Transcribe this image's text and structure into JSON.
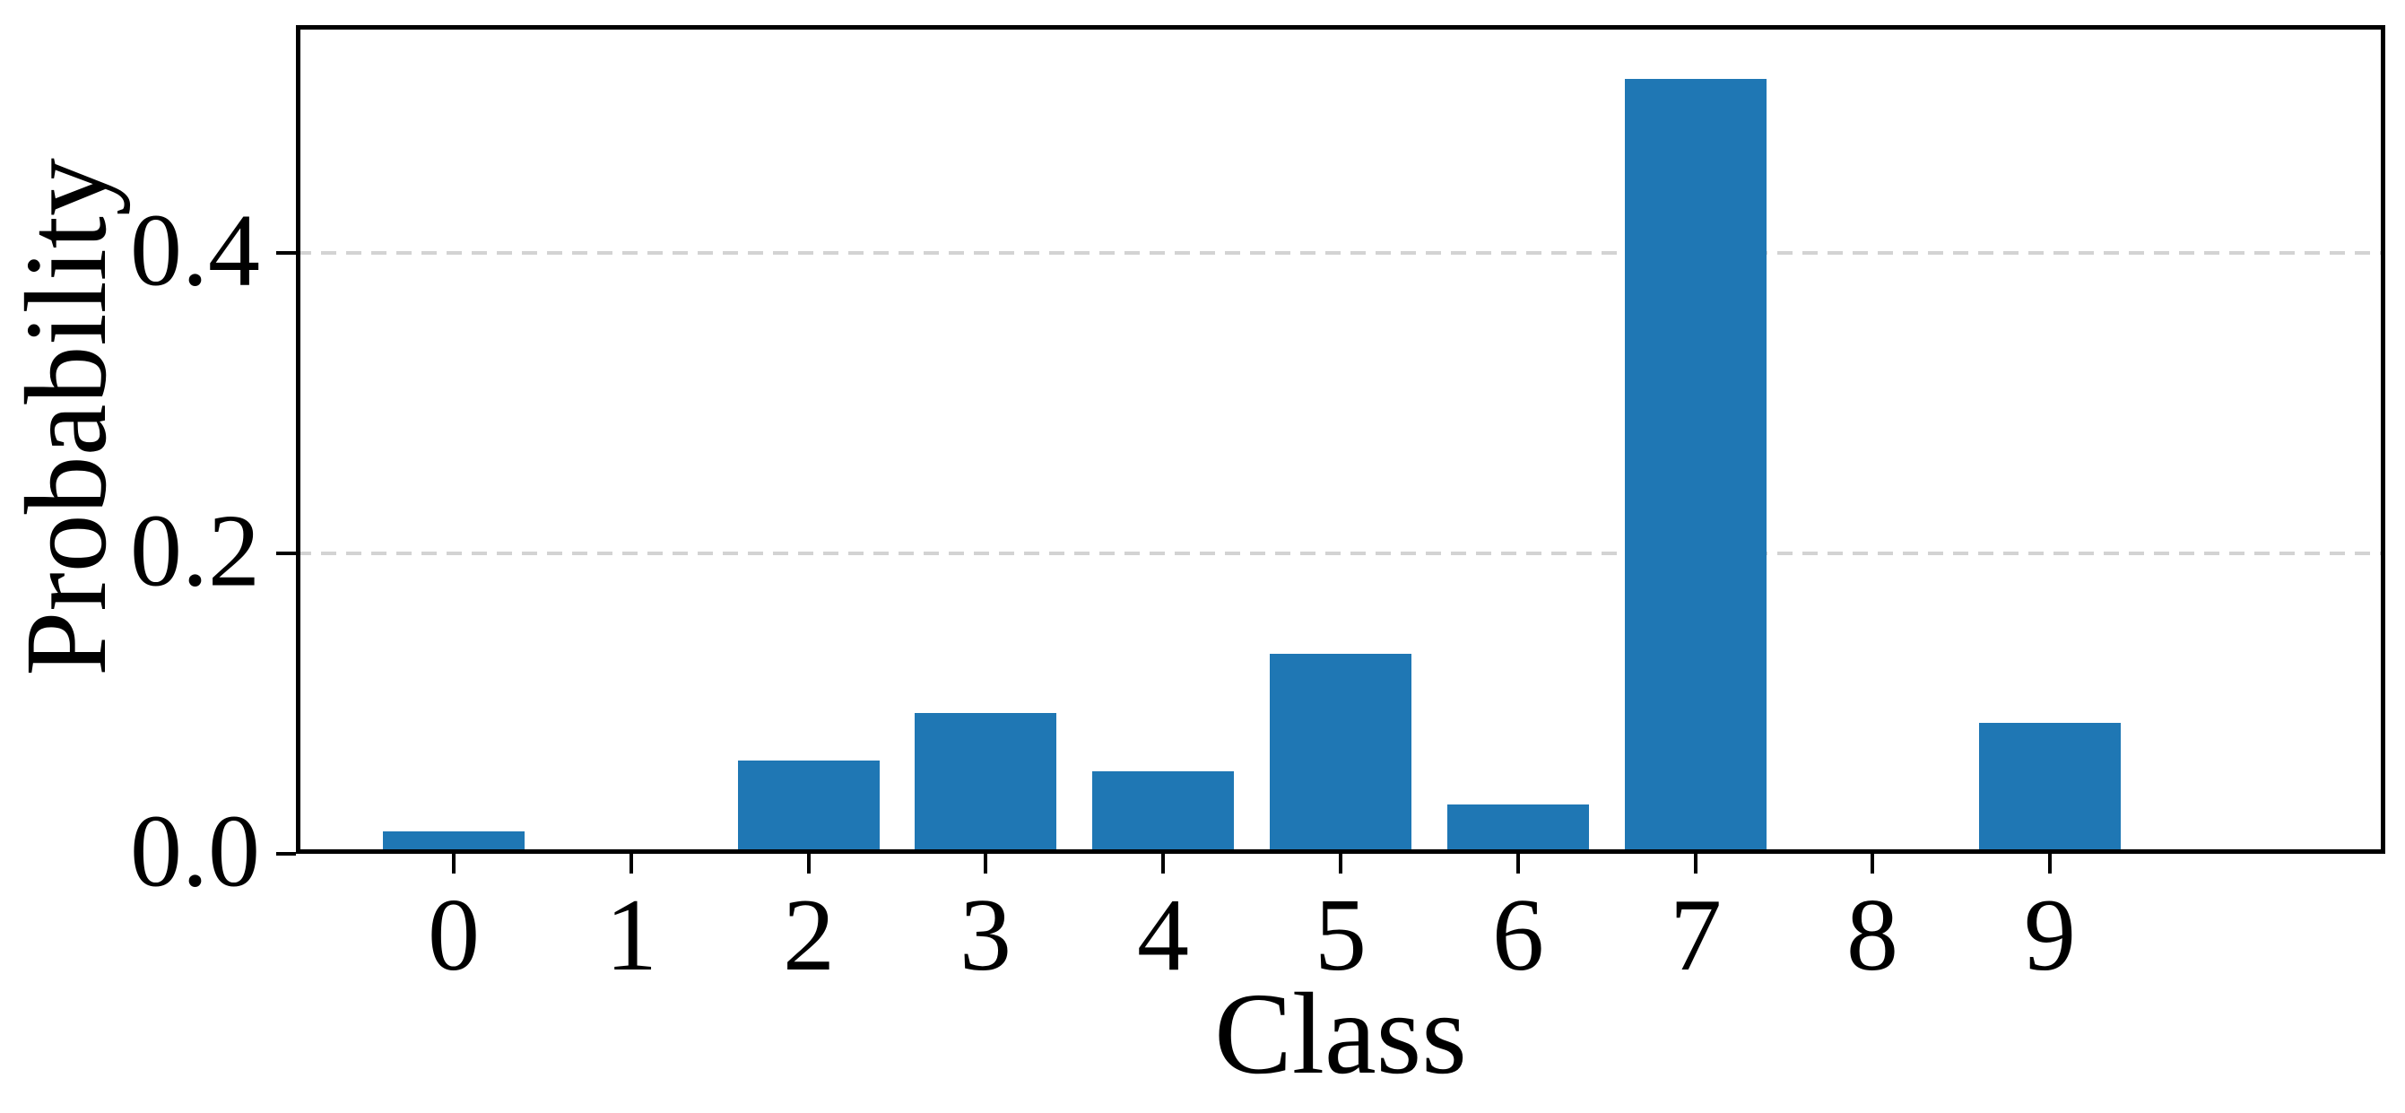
{
  "chart_data": {
    "type": "bar",
    "title": "",
    "xlabel": "Class",
    "ylabel": "Probability",
    "categories": [
      "0",
      "1",
      "2",
      "3",
      "4",
      "5",
      "6",
      "7",
      "8",
      "9"
    ],
    "values": [
      0.015,
      0.003,
      0.062,
      0.094,
      0.055,
      0.133,
      0.033,
      0.516,
      0.0,
      0.087
    ],
    "yticks": [
      0.0,
      0.2,
      0.4
    ],
    "ytick_labels": [
      "0.0",
      "0.2",
      "0.4"
    ],
    "ylim": [
      0.0,
      0.552
    ],
    "bar_width_fraction": 0.8,
    "grid": "horizontal-dashed",
    "legend": "none",
    "colors": {
      "bar": "#1f77b4",
      "grid": "#d3d3d3",
      "axis": "#000000",
      "text": "#000000",
      "background": "#ffffff"
    }
  }
}
